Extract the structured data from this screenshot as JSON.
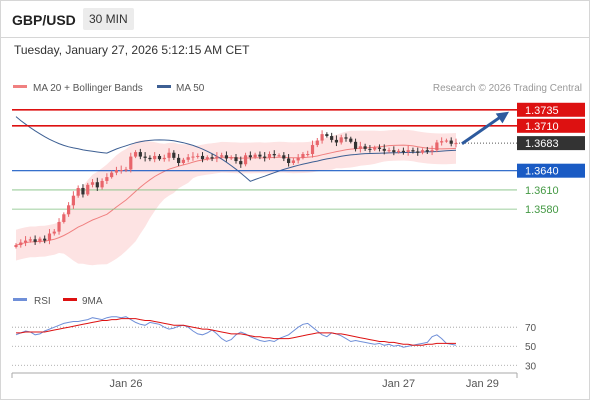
{
  "header": {
    "symbol": "GBP/USD",
    "timeframe": "30 MIN"
  },
  "datetime": "Tuesday, January 27, 2026 5:12:15 AM CET",
  "copyright": "Research © 2026 Trading Central",
  "colors": {
    "candle_up": "#e8656b",
    "candle_down": "#333333",
    "ma20": "#f08080",
    "bollinger_fill": "#fde3e3",
    "ma50": "#3d5f93",
    "resistance": "#dd1111",
    "support": "#1a5bc4",
    "target": "#449944",
    "rsi": "#6f8fd8",
    "rsi_ma": "#dd1111",
    "arrow": "#2d5a9e",
    "price_box": "#333333"
  },
  "chart_data": [
    {
      "type": "candlestick",
      "legend": [
        {
          "name": "MA 20 + Bollinger Bands"
        },
        {
          "name": "MA 50"
        }
      ],
      "ylim": [
        1.3482,
        1.3744
      ],
      "levels": [
        {
          "value": 1.3735,
          "label": "1.3735",
          "kind": "resistance"
        },
        {
          "value": 1.371,
          "label": "1.3710",
          "kind": "resistance"
        },
        {
          "value": 1.3683,
          "label": "1.3683",
          "kind": "last"
        },
        {
          "value": 1.364,
          "label": "1.3640",
          "kind": "pivot"
        },
        {
          "value": 1.361,
          "label": "1.3610",
          "kind": "support"
        },
        {
          "value": 1.358,
          "label": "1.3580",
          "kind": "support"
        }
      ],
      "forecast_arrow": {
        "from": 1.3682,
        "to": 1.3732
      },
      "close": [
        1.3524,
        1.3528,
        1.3531,
        1.3533,
        1.3529,
        1.3534,
        1.3531,
        1.3542,
        1.3545,
        1.356,
        1.3572,
        1.3586,
        1.3601,
        1.3613,
        1.3603,
        1.3618,
        1.3622,
        1.3614,
        1.3624,
        1.363,
        1.3637,
        1.3641,
        1.3641,
        1.3642,
        1.3662,
        1.3669,
        1.3662,
        1.366,
        1.3658,
        1.3663,
        1.3658,
        1.366,
        1.3668,
        1.366,
        1.3652,
        1.3657,
        1.3661,
        1.3662,
        1.3663,
        1.3658,
        1.3661,
        1.3659,
        1.3662,
        1.3664,
        1.3659,
        1.3661,
        1.3655,
        1.365,
        1.3664,
        1.3661,
        1.3665,
        1.3662,
        1.366,
        1.3666,
        1.3664,
        1.3664,
        1.3659,
        1.3652,
        1.3656,
        1.366,
        1.3666,
        1.3666,
        1.368,
        1.3687,
        1.3697,
        1.3694,
        1.3688,
        1.3684,
        1.3692,
        1.369,
        1.3685,
        1.3674,
        1.3678,
        1.3674,
        1.3673,
        1.3676,
        1.3674,
        1.3671,
        1.3672,
        1.3669,
        1.3671,
        1.3669,
        1.3672,
        1.367,
        1.3668,
        1.3672,
        1.367,
        1.3672,
        1.3684,
        1.3686,
        1.3687,
        1.3682,
        1.3683
      ],
      "x_ticks": [
        {
          "index": 23,
          "label": "Jan 26"
        },
        {
          "index": 80,
          "label": "Jan 27"
        },
        {
          "index": 95,
          "label": "Jan 29"
        }
      ]
    },
    {
      "type": "line",
      "legend": [
        {
          "name": "RSI"
        },
        {
          "name": "9MA"
        }
      ],
      "ylim": [
        24,
        87
      ],
      "y_ticks": [
        {
          "value": 70,
          "label": "70"
        },
        {
          "value": 50,
          "label": "50"
        },
        {
          "value": 30,
          "label": "30"
        }
      ],
      "series": [
        {
          "name": "RSI",
          "values": [
            62,
            64,
            66,
            65,
            62,
            63,
            66,
            68,
            70,
            72,
            74,
            75,
            76,
            76,
            77,
            78,
            80,
            79,
            78,
            80,
            81,
            81,
            80,
            81,
            78,
            75,
            73,
            72,
            75,
            74,
            73,
            70,
            68,
            69,
            71,
            72,
            70,
            66,
            63,
            62,
            64,
            67,
            63,
            58,
            55,
            57,
            62,
            65,
            63,
            60,
            58,
            56,
            55,
            56,
            55,
            58,
            60,
            62,
            66,
            70,
            73,
            74,
            70,
            66,
            62,
            60,
            64,
            63,
            61,
            58,
            55,
            56,
            55,
            54,
            53,
            52,
            53,
            51,
            52,
            50,
            51,
            49,
            50,
            51,
            52,
            53,
            54,
            60,
            62,
            58,
            53,
            52,
            51
          ]
        },
        {
          "name": "9MA",
          "values": [
            64,
            64,
            65,
            65,
            65,
            65,
            65,
            66,
            67,
            68,
            69,
            70,
            71,
            72,
            73,
            74,
            75,
            76,
            77,
            77,
            78,
            78,
            79,
            79,
            79,
            79,
            78,
            77,
            77,
            76,
            75,
            74,
            73,
            72,
            72,
            72,
            71,
            70,
            69,
            68,
            68,
            67,
            66,
            65,
            64,
            63,
            63,
            63,
            62,
            61,
            60,
            60,
            59,
            59,
            58,
            58,
            58,
            58,
            59,
            60,
            61,
            62,
            63,
            64,
            64,
            64,
            64,
            63,
            63,
            62,
            61,
            60,
            59,
            58,
            57,
            56,
            55,
            55,
            54,
            54,
            53,
            52,
            52,
            51,
            51,
            51,
            52,
            52,
            53,
            53,
            53,
            53,
            53
          ]
        }
      ]
    }
  ]
}
